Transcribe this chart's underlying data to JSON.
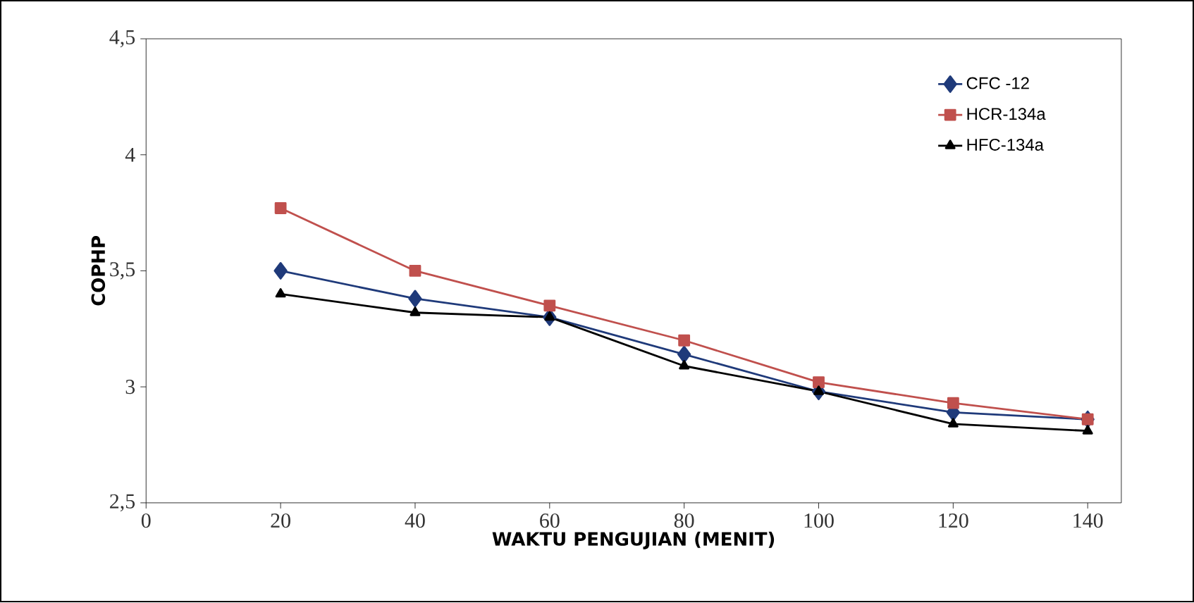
{
  "chart_data": {
    "type": "line",
    "xlabel": "WAKTU PENGUJIAN (MENIT)",
    "ylabel": "COPHP",
    "x": [
      20,
      40,
      60,
      80,
      100,
      120,
      140
    ],
    "series": [
      {
        "name": "CFC -12",
        "color": "#1f3a7a",
        "marker": "diamond",
        "values": [
          3.5,
          3.38,
          3.3,
          3.14,
          2.98,
          2.89,
          2.86
        ]
      },
      {
        "name": "HCR-134a",
        "color": "#c0504d",
        "marker": "square",
        "values": [
          3.77,
          3.5,
          3.35,
          3.2,
          3.02,
          2.93,
          2.86
        ]
      },
      {
        "name": "HFC-134a",
        "color": "#000000",
        "marker": "triangle",
        "values": [
          3.4,
          3.32,
          3.3,
          3.09,
          2.98,
          2.84,
          2.81
        ]
      }
    ],
    "xlim": [
      0,
      145
    ],
    "xticks": [
      0,
      20,
      40,
      60,
      80,
      100,
      120,
      140
    ],
    "ylim": [
      2.5,
      4.5
    ],
    "yticks": [
      {
        "value": 2.5,
        "label": "2,5"
      },
      {
        "value": 3,
        "label": "3"
      },
      {
        "value": 3.5,
        "label": "3,5"
      },
      {
        "value": 4,
        "label": "4"
      },
      {
        "value": 4.5,
        "label": "4,5"
      }
    ],
    "legend": "top right",
    "grid": false,
    "line_style": "solid"
  }
}
